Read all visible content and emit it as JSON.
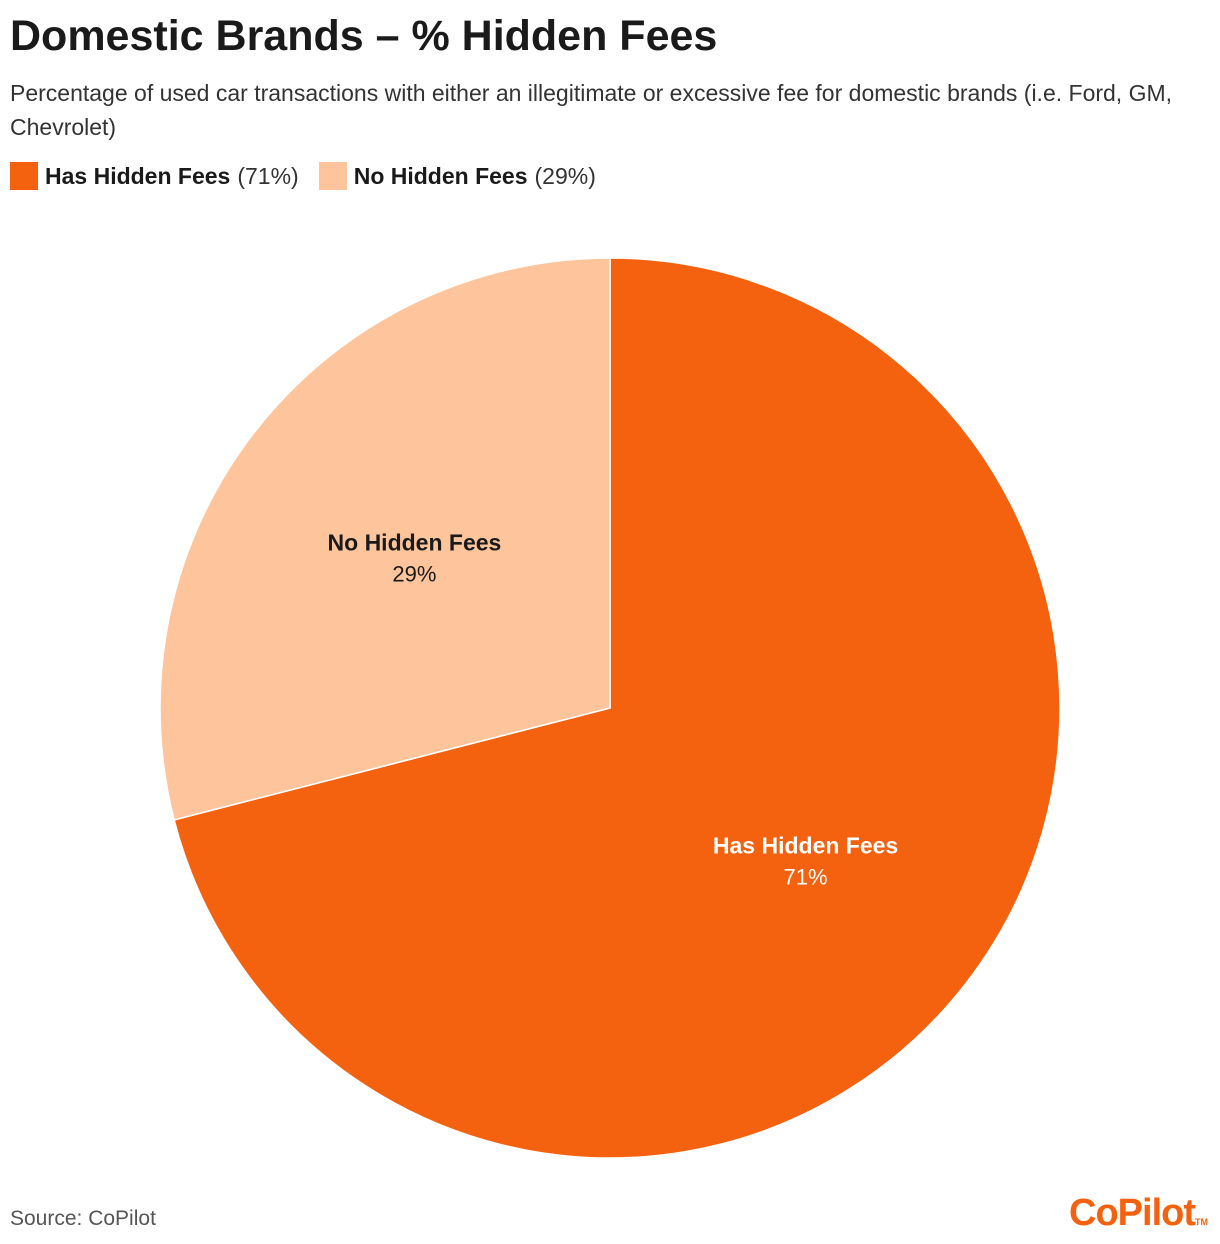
{
  "title": "Domestic Brands – % Hidden Fees",
  "subtitle": "Percentage of used car transactions with either an illegitimate or excessive fee for domestic brands (i.e. Ford, GM, Chevrolet)",
  "legend": [
    {
      "name": "Has Hidden Fees",
      "pct": "(71%)",
      "color": "#f5620f"
    },
    {
      "name": "No Hidden Fees",
      "pct": "(29%)",
      "color": "#fec49c"
    }
  ],
  "chart_data": {
    "type": "pie",
    "categories": [
      "Has Hidden Fees",
      "No Hidden Fees"
    ],
    "values": [
      71,
      29
    ],
    "labels": [
      "71%",
      "29%"
    ],
    "colors": [
      "#f5620f",
      "#fec49c"
    ],
    "label_colors": [
      "#ffffff",
      "#1a1a1a"
    ],
    "start": "12 o'clock, clockwise",
    "legend_position": "top-left"
  },
  "source": "Source: CoPilot",
  "logo": {
    "text": "CoPilot",
    "tm": "TM",
    "color": "#f5620f"
  }
}
